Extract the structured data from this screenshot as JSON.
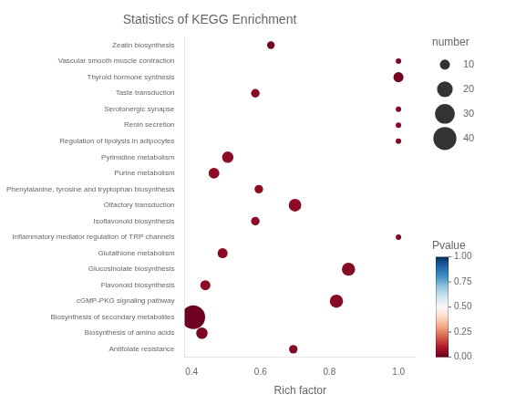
{
  "chart_data": {
    "type": "bubble",
    "title": "Statistics of KEGG Enrichment",
    "xlabel": "Rich factor",
    "categories": [
      "Zeatin biosynthesis",
      "Vascular smooth muscle contraction",
      "Thyroid hormone synthesis",
      "Taste transduction",
      "Serotonergic synapse",
      "Renin secretion",
      "Regulation of lipolysis in adipocytes",
      "Pyrimidine metabolism",
      "Purine metabolism",
      "Phenylalanine, tyrosine and tryptophan biosynthesis",
      "Olfactory transduction",
      "Isoflavonoid biosynthesis",
      "Inflammatory mediator regulation of TRP channels",
      "Glutathione metabolism",
      "Glucosinolate biosynthesis",
      "Flavonoid biosynthesis",
      "cGMP-PKG signaling pathway",
      "Biosynthesis of secondary metabolites",
      "Biosynthesis of amino acids",
      "Antifolate resistance"
    ],
    "values": [
      0.63,
      1.0,
      1.0,
      0.585,
      1.0,
      1.0,
      1.0,
      0.505,
      0.465,
      0.595,
      0.7,
      0.585,
      1.0,
      0.49,
      0.855,
      0.44,
      0.82,
      0.405,
      0.43,
      0.695
    ],
    "sizes": [
      7,
      5,
      10,
      8,
      5,
      5,
      5,
      12,
      11,
      8,
      14,
      8,
      5,
      10,
      15,
      10,
      15,
      42,
      12,
      8
    ],
    "color_values": [
      0.02,
      0.03,
      0.02,
      0.04,
      0.04,
      0.04,
      0.04,
      0.05,
      0.05,
      0.05,
      0.05,
      0.05,
      0.04,
      0.05,
      0.04,
      0.05,
      0.04,
      0.01,
      0.03,
      0.04
    ],
    "size_legend_title": "number",
    "size_legend": [
      10,
      20,
      30,
      40
    ],
    "colorbar_title": "Pvalue",
    "colorbar_range": [
      0,
      1
    ],
    "colorbar_ticks": [
      {
        "value": 0,
        "label": "0.00"
      },
      {
        "value": 0.25,
        "label": "0.25"
      },
      {
        "value": 0.5,
        "label": "0.50"
      },
      {
        "value": 0.75,
        "label": "0.75"
      },
      {
        "value": 1,
        "label": "1.00"
      }
    ],
    "colorbar_colors": [
      "#67001f",
      "#b2182b",
      "#d6604d",
      "#f4a582",
      "#fddbc7",
      "#f7f7f7",
      "#d1e5f0",
      "#92c5de",
      "#4393c3",
      "#2166ac",
      "#053061"
    ],
    "xlim": [
      0.38,
      1.05
    ],
    "xticks": [
      0.4,
      0.6,
      0.8,
      {
        "value": 1,
        "label": "1.0"
      }
    ],
    "grid": false
  }
}
